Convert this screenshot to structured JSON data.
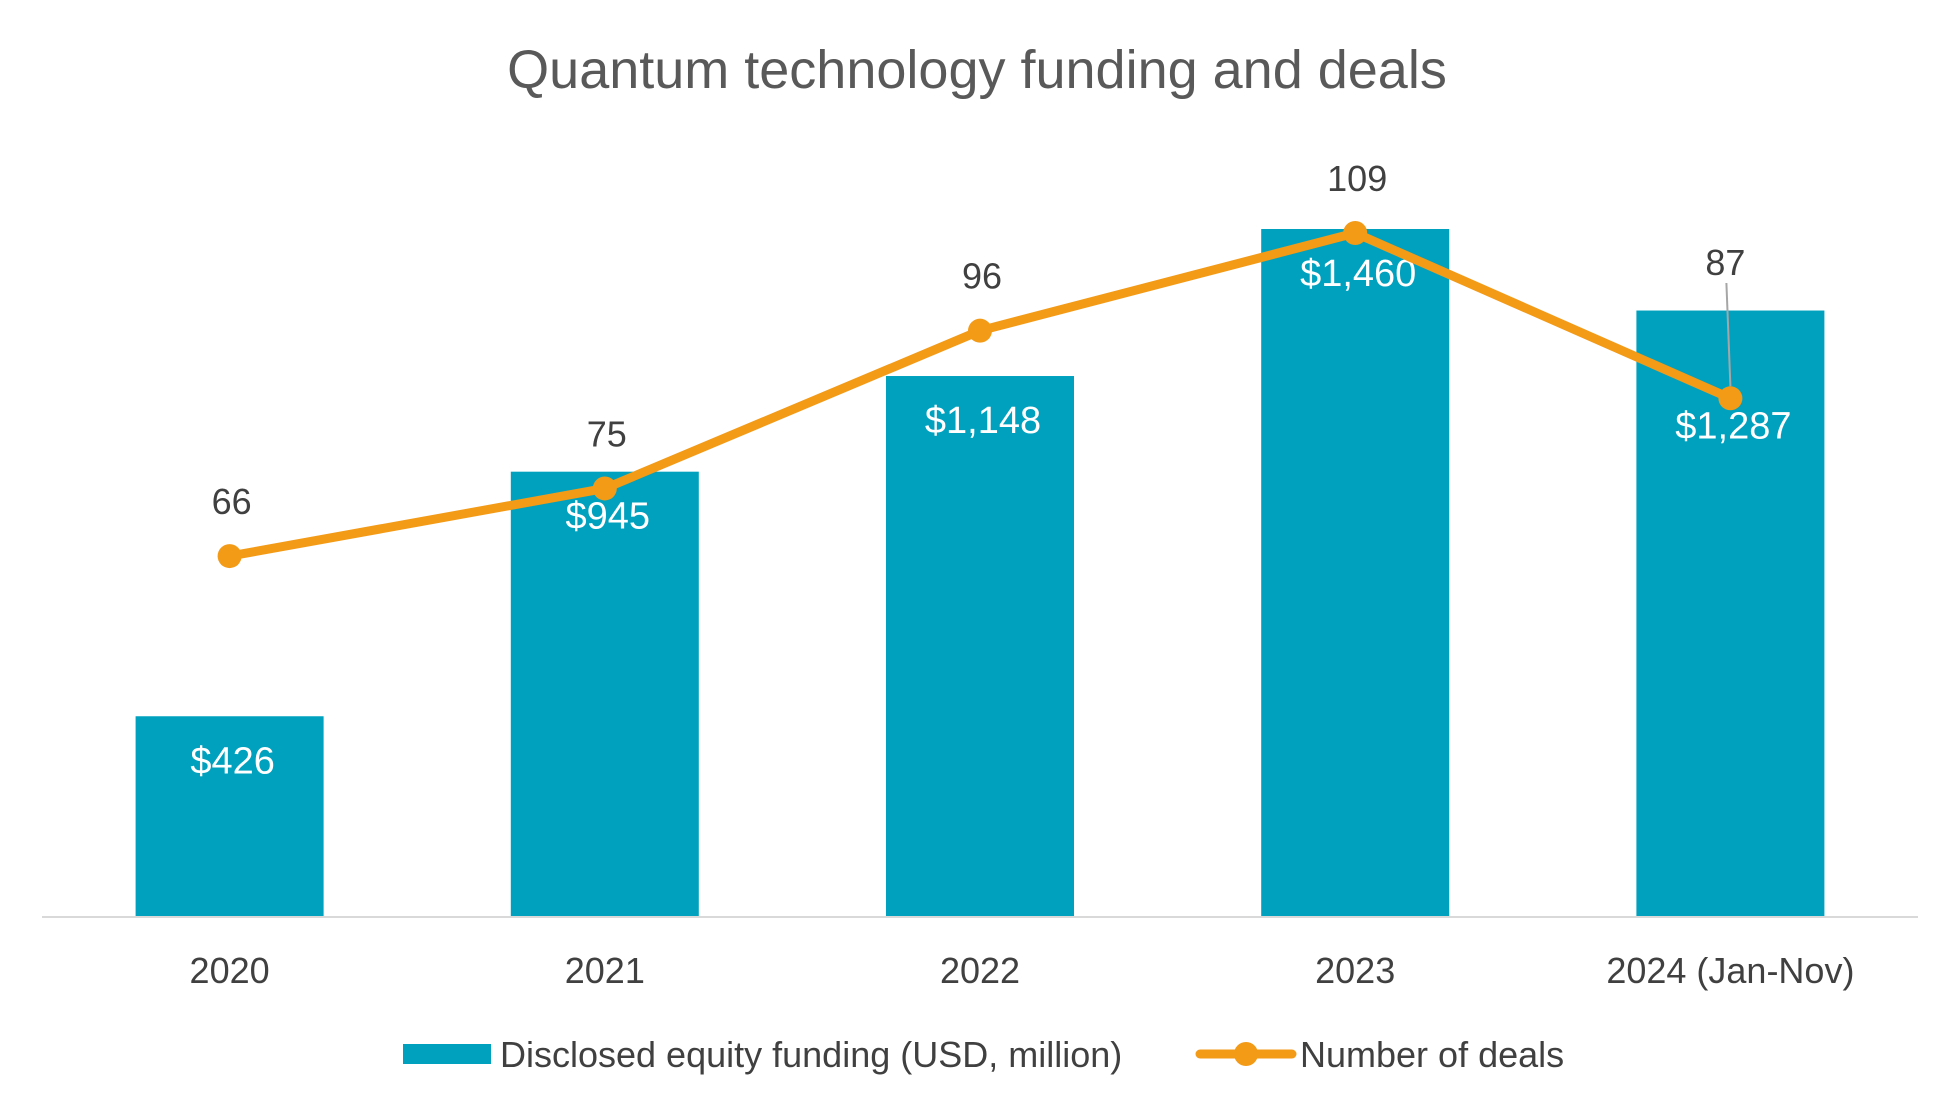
{
  "chart_data": {
    "type": "bar",
    "title": "Quantum technology funding and deals",
    "categories": [
      "2020",
      "2021",
      "2022",
      "2023",
      "2024 (Jan-Nov)"
    ],
    "series": [
      {
        "name": "Disclosed equity funding (USD, million)",
        "type": "bar",
        "axis": "left",
        "values": [
          426,
          945,
          1148,
          1460,
          1287
        ],
        "labels": [
          "$426",
          "$945",
          "$1,148",
          "$1,460",
          "$1,287"
        ],
        "color": "#00A1BE",
        "label_color": "#FFFFFF"
      },
      {
        "name": "Number of deals",
        "type": "line",
        "axis": "right",
        "values": [
          66,
          75,
          96,
          109,
          87
        ],
        "labels": [
          "66",
          "75",
          "96",
          "109",
          "87"
        ],
        "color": "#F39A17"
      }
    ],
    "ylim_left": [
      0,
      1460
    ],
    "ylim_right": [
      0,
      109
    ],
    "grid": false,
    "legend": "bottom-center",
    "colors": {
      "title": "#595959",
      "text": "#404040",
      "axis_line": "#D9D9D9",
      "leader_line": "#A6A6A6"
    }
  }
}
